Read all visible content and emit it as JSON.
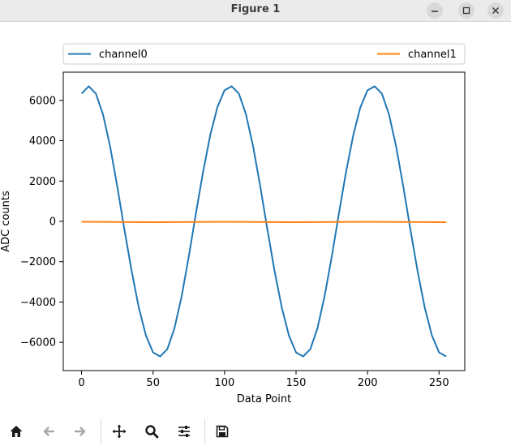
{
  "window": {
    "title": "Figure 1"
  },
  "toolbar": {
    "icons": [
      "home-icon",
      "back-arrow-icon",
      "forward-arrow-icon",
      "pan-icon",
      "zoom-icon",
      "configure-subplots-icon",
      "save-icon"
    ]
  },
  "colors": {
    "channel0": "#1f77b4",
    "channel1": "#ff7f0e"
  },
  "chart_data": {
    "type": "line",
    "xlabel": "Data Point",
    "ylabel": "ADC counts",
    "xlim": [
      -12.8,
      268
    ],
    "ylim": [
      -7400,
      7400
    ],
    "x_ticks": [
      0,
      50,
      100,
      150,
      200,
      250
    ],
    "y_ticks": [
      -6000,
      -4000,
      -2000,
      0,
      2000,
      4000,
      6000
    ],
    "x_tick_labels": [
      "0",
      "50",
      "100",
      "150",
      "200",
      "250"
    ],
    "y_tick_labels": [
      "−6000",
      "−4000",
      "−2000",
      "0",
      "2000",
      "4000",
      "6000"
    ],
    "legend_position": "top",
    "series": [
      {
        "name": "channel0",
        "x": [
          0,
          5,
          10,
          15,
          20,
          25,
          30,
          35,
          40,
          45,
          50,
          55,
          60,
          65,
          70,
          75,
          80,
          85,
          90,
          95,
          100,
          105,
          110,
          115,
          120,
          125,
          130,
          135,
          140,
          145,
          150,
          155,
          160,
          165,
          170,
          175,
          180,
          185,
          190,
          195,
          200,
          205,
          210,
          215,
          220,
          225,
          230,
          235,
          240,
          245,
          250,
          255
        ],
        "y": [
          6340,
          6700,
          6340,
          5300,
          3710,
          1730,
          -410,
          -2460,
          -4270,
          -5660,
          -6500,
          -6700,
          -6340,
          -5300,
          -3710,
          -1730,
          410,
          2460,
          4270,
          5660,
          6500,
          6700,
          6340,
          5300,
          3710,
          1730,
          -410,
          -2460,
          -4270,
          -5660,
          -6500,
          -6700,
          -6340,
          -5300,
          -3710,
          -1730,
          410,
          2460,
          4270,
          5660,
          6500,
          6700,
          6340,
          5300,
          3710,
          1730,
          -410,
          -2460,
          -4270,
          -5660,
          -6500,
          -6700
        ]
      },
      {
        "name": "channel1",
        "x": [
          0,
          25,
          50,
          75,
          100,
          125,
          150,
          175,
          200,
          225,
          255
        ],
        "y": [
          -20,
          -30,
          -40,
          -30,
          -20,
          -30,
          -40,
          -30,
          -20,
          -30,
          -40
        ]
      }
    ]
  }
}
